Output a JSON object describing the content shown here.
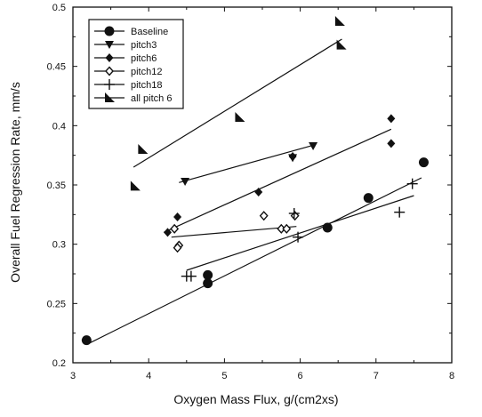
{
  "chart_data": {
    "type": "scatter",
    "xlabel": "Oxygen Mass Flux, g/(cm2xs)",
    "ylabel": "Overall Fuel Regression Rate, mm/s",
    "xlim": [
      3,
      8
    ],
    "ylim": [
      0.2,
      0.5
    ],
    "xticks": [
      "3",
      "4",
      "5",
      "6",
      "7",
      "8"
    ],
    "yticks": [
      "0.2",
      "0.25",
      "0.3",
      "0.35",
      "0.4",
      "0.45",
      "0.5"
    ],
    "grid": false,
    "legend_position": "top-left",
    "series": [
      {
        "name": "Baseline",
        "marker": "circle",
        "points": [
          [
            3.18,
            0.219
          ],
          [
            4.78,
            0.274
          ],
          [
            4.78,
            0.267
          ],
          [
            6.36,
            0.314
          ],
          [
            6.9,
            0.339
          ],
          [
            7.63,
            0.369
          ]
        ],
        "fit": [
          [
            3.2,
            0.216
          ],
          [
            7.6,
            0.356
          ]
        ]
      },
      {
        "name": "pitch3",
        "marker": "triangle-down",
        "points": [
          [
            4.48,
            0.353
          ],
          [
            5.9,
            0.373
          ],
          [
            6.17,
            0.383
          ]
        ],
        "fit": [
          [
            4.4,
            0.352
          ],
          [
            6.2,
            0.384
          ]
        ]
      },
      {
        "name": "pitch6",
        "marker": "diamond",
        "points": [
          [
            4.25,
            0.31
          ],
          [
            4.38,
            0.323
          ],
          [
            5.45,
            0.344
          ],
          [
            5.9,
            0.374
          ],
          [
            7.2,
            0.406
          ],
          [
            7.2,
            0.385
          ]
        ],
        "fit": [
          [
            4.2,
            0.31
          ],
          [
            7.2,
            0.397
          ]
        ]
      },
      {
        "name": "pitch12",
        "marker": "diamond-open",
        "points": [
          [
            4.34,
            0.313
          ],
          [
            4.4,
            0.299
          ],
          [
            4.38,
            0.297
          ],
          [
            5.52,
            0.324
          ],
          [
            5.75,
            0.313
          ],
          [
            5.82,
            0.313
          ],
          [
            5.93,
            0.324
          ]
        ],
        "fit": [
          [
            4.3,
            0.306
          ],
          [
            5.95,
            0.315
          ]
        ]
      },
      {
        "name": "pitch18",
        "marker": "plus",
        "points": [
          [
            4.5,
            0.273
          ],
          [
            4.56,
            0.273
          ],
          [
            5.92,
            0.326
          ],
          [
            5.97,
            0.306
          ],
          [
            7.31,
            0.327
          ],
          [
            7.48,
            0.351
          ]
        ],
        "fit": [
          [
            4.5,
            0.278
          ],
          [
            7.5,
            0.341
          ]
        ]
      },
      {
        "name": "all pitch 6",
        "marker": "flag",
        "points": [
          [
            3.82,
            0.349
          ],
          [
            3.92,
            0.38
          ],
          [
            5.2,
            0.407
          ],
          [
            6.52,
            0.488
          ],
          [
            6.54,
            0.468
          ]
        ],
        "fit": [
          [
            3.8,
            0.365
          ],
          [
            6.55,
            0.473
          ]
        ]
      }
    ]
  }
}
